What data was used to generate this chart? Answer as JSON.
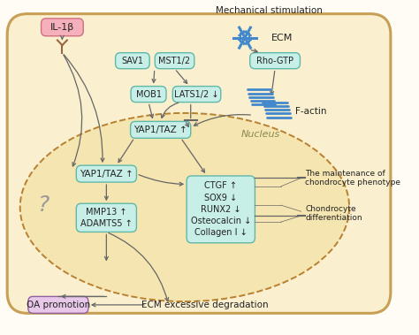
{
  "bg_color": "#FEFCF5",
  "cell_color": "#FAF0D0",
  "nucleus_color": "#F5E5B0",
  "box_color": "#C8EEE8",
  "box_edge": "#60B8A8",
  "il1b_color": "#F5B0BC",
  "il1b_edge": "#D07080",
  "oa_color": "#E8C8E8",
  "oa_edge": "#9060A0",
  "arrow_color": "#666666",
  "text_color": "#222222",
  "blue_color": "#4488CC",
  "title": "Mechanical stimulation",
  "ecm_label": "ECM",
  "factin_label": "F-actin",
  "nucleus_label": "Nucleus",
  "il1b_label": "IL-1β",
  "sav1_label": "SAV1",
  "mst_label": "MST1/2",
  "mob1_label": "MOB1",
  "lats_label": "LATS1/2 ↓",
  "rhogtp_label": "Rho-GTP",
  "yap_cyto_label": "YAP1/TAZ ↑",
  "yap_nuc_label": "YAP1/TAZ ↑",
  "mmp_label": "MMP13 ↑\nADAMTS5 ↑",
  "ctgf_box_label": "CTGF ↑\nSOX9 ↓\nRUNX2 ↓\nOsteocalcin ↓\nCollagen I ↓",
  "maintenance_label": "The maintenance of\nchondrocyte phenotype",
  "chondrocyte_label": "Chondrocyte\ndifferentiation",
  "oa_label": "OA promotion",
  "ecm_deg_label": "ECM excessive degradation",
  "question_label": "?"
}
